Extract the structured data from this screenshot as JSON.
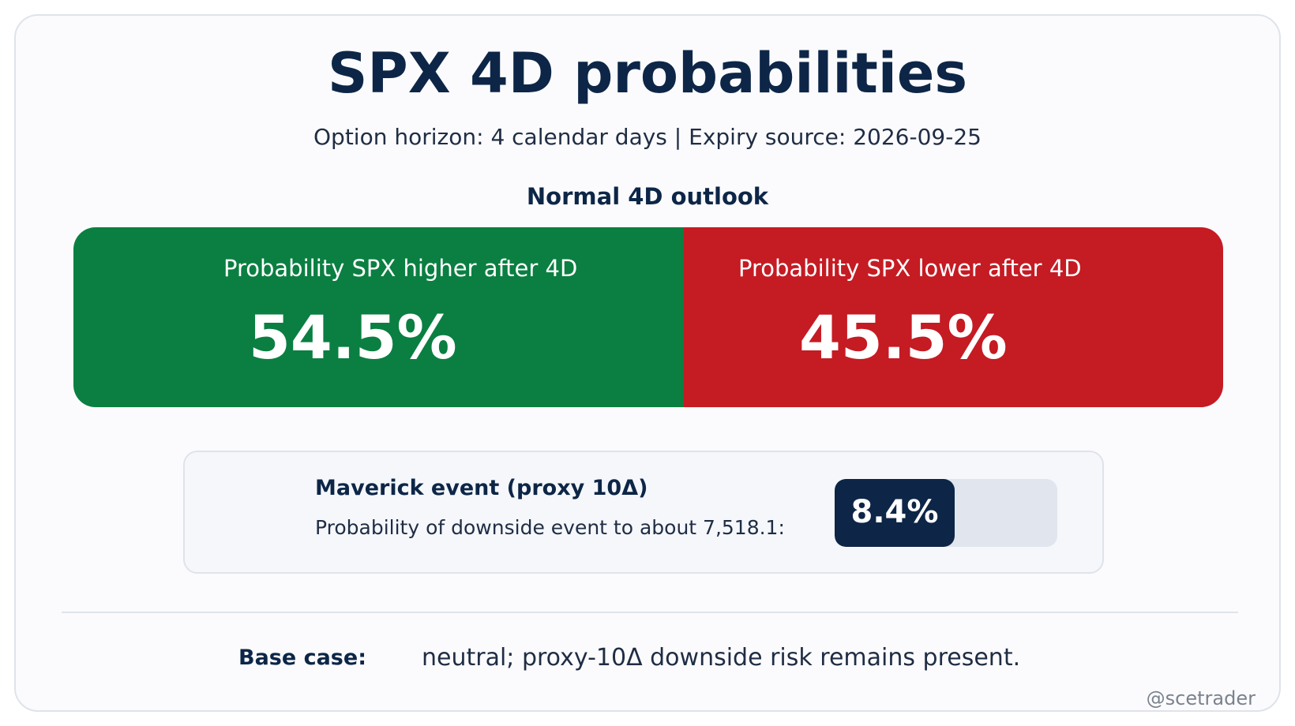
{
  "header": {
    "title": "SPX 4D probabilities",
    "subtitle": "Option horizon: 4 calendar days | Expiry source: 2026-09-25"
  },
  "outlook": {
    "heading": "Normal 4D outlook",
    "up": {
      "label": "Probability SPX higher after 4D",
      "value": "54.5%",
      "fraction": 0.545,
      "color": "#0a7f41"
    },
    "down": {
      "label": "Probability SPX lower after 4D",
      "value": "45.5%",
      "fraction": 0.455,
      "color": "#c51b23"
    }
  },
  "maverick": {
    "title": "Maverick event (proxy 10Δ)",
    "description": "Probability of downside event to about 7,518.1:",
    "value": "8.4%",
    "fill_color": "#0d2647",
    "track_color": "#e0e5ee"
  },
  "footer": {
    "base_label": "Base case:",
    "base_text": "neutral; proxy-10Δ downside risk remains present.",
    "handle": "@scetrader"
  },
  "colors": {
    "navy": "#0d2647",
    "card_background": "#fbfbfd"
  }
}
